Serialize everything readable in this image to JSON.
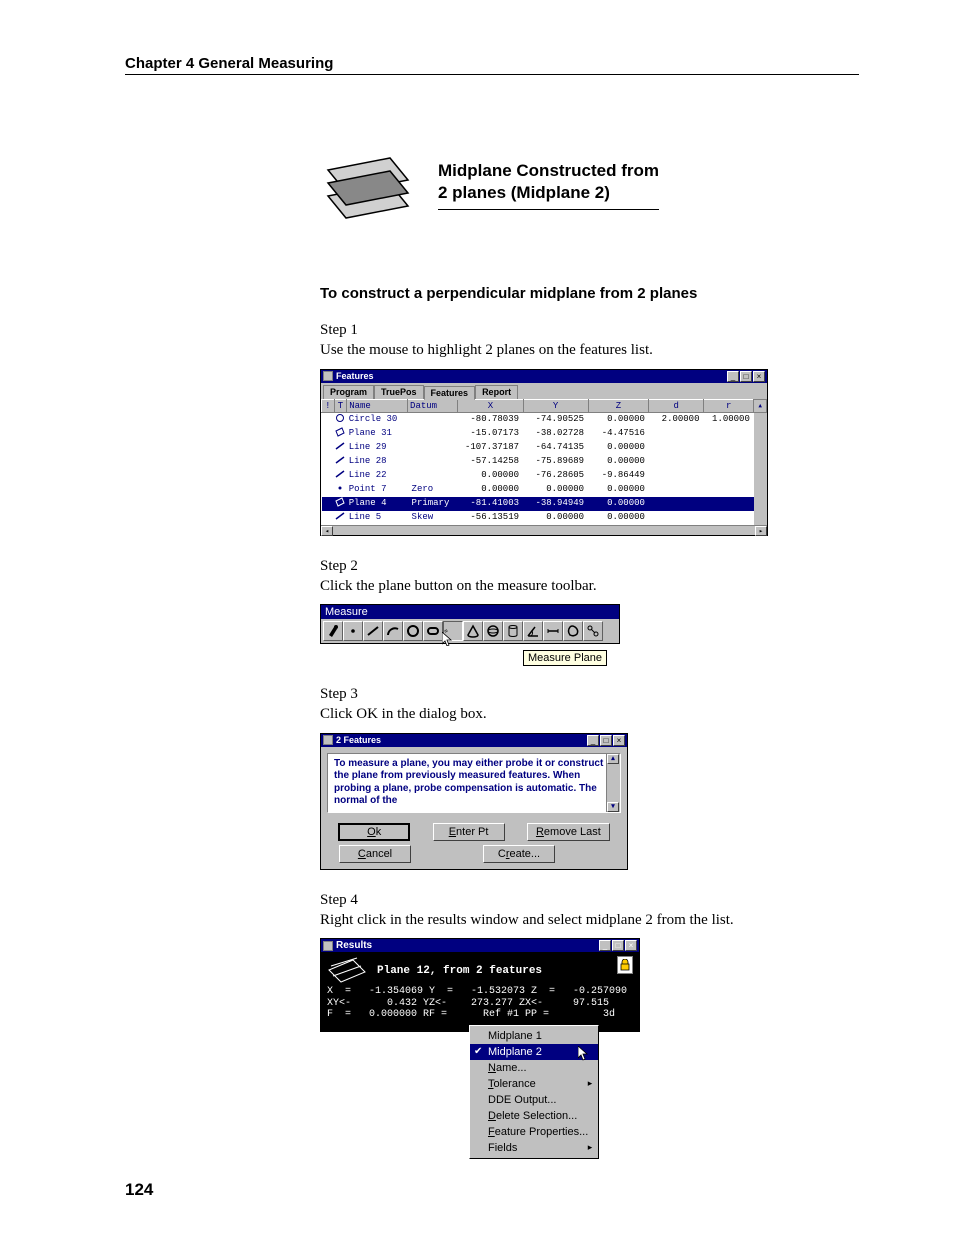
{
  "chapter_header": "Chapter 4    General Measuring",
  "page_number": "124",
  "title": {
    "line1": "Midplane Constructed from",
    "line2": "2 planes (Midplane 2)"
  },
  "section_heading": "To construct a perpendicular midplane from 2 planes",
  "steps": {
    "s1_label": "Step 1",
    "s1_text": "Use the mouse to highlight 2 planes on the features list.",
    "s2_label": "Step 2",
    "s2_text": "Click the plane button on the measure toolbar.",
    "s3_label": "Step 3",
    "s3_text": "Click OK in the dialog box.",
    "s4_label": "Step 4",
    "s4_text": "Right click in the results window and select midplane 2 from the list."
  },
  "features_window": {
    "title": "Features",
    "tabs": [
      "Program",
      "TruePos",
      "Features",
      "Report"
    ],
    "columns": [
      "!",
      "T",
      "Name",
      "Datum",
      "X",
      "Y",
      "Z",
      "d",
      "r"
    ],
    "rows": [
      {
        "icon": "circle",
        "name": "Circle 30",
        "datum": "",
        "x": "-80.78039",
        "y": "-74.90525",
        "z": "0.00000",
        "d": "2.00000",
        "r": "1.00000",
        "sel": false
      },
      {
        "icon": "plane",
        "name": "Plane 31",
        "datum": "",
        "x": "-15.07173",
        "y": "-38.02728",
        "z": "-4.47516",
        "d": "",
        "r": "",
        "sel": false
      },
      {
        "icon": "line",
        "name": "Line 29",
        "datum": "",
        "x": "-107.37187",
        "y": "-64.74135",
        "z": "0.00000",
        "d": "",
        "r": "",
        "sel": false
      },
      {
        "icon": "line",
        "name": "Line 28",
        "datum": "",
        "x": "-57.14258",
        "y": "-75.89689",
        "z": "0.00000",
        "d": "",
        "r": "",
        "sel": false
      },
      {
        "icon": "line",
        "name": "Line 22",
        "datum": "",
        "x": "0.00000",
        "y": "-76.28605",
        "z": "-9.86449",
        "d": "",
        "r": "",
        "sel": false
      },
      {
        "icon": "point",
        "name": "Point 7",
        "datum": "Zero",
        "x": "0.00000",
        "y": "0.00000",
        "z": "0.00000",
        "d": "",
        "r": "",
        "sel": false
      },
      {
        "icon": "plane",
        "name": "Plane 4",
        "datum": "Primary",
        "x": "-81.41003",
        "y": "-38.94949",
        "z": "0.00000",
        "d": "",
        "r": "",
        "sel": true
      },
      {
        "icon": "line",
        "name": "Line 5",
        "datum": "Skew",
        "x": "-56.13519",
        "y": "0.00000",
        "z": "0.00000",
        "d": "",
        "r": "",
        "sel": false
      }
    ]
  },
  "measure_toolbar": {
    "title": "Measure",
    "tooltip": "Measure Plane",
    "buttons": [
      "probe",
      "point",
      "line",
      "arc",
      "circle",
      "slot",
      "plane",
      "cone",
      "sphere",
      "cylinder",
      "angle",
      "distance",
      "blob",
      "relation"
    ]
  },
  "dialog": {
    "title": "2 Features",
    "body": "To measure a plane, you may either probe it or construct the plane from previously measured features.  When probing a plane, probe compensation is automatic.  The normal of the",
    "buttons": {
      "ok": "Ok",
      "enter_pt": "Enter Pt",
      "remove_last": "Remove Last",
      "cancel": "Cancel",
      "create": "Create..."
    }
  },
  "results": {
    "title": "Results",
    "header": "Plane 12, from 2 features",
    "lines": [
      "X  =   -1.354069 Y  =   -1.532073 Z  =   -0.257090",
      "XY<-      0.432 YZ<-    273.277 ZX<-     97.515",
      "F  =   0.000000 RF =      Ref #1 PP =         3d"
    ],
    "context_menu": [
      {
        "label": "Midplane 1",
        "sel": false,
        "check": false,
        "arrow": false,
        "u": ""
      },
      {
        "label": "Midplane 2",
        "sel": true,
        "check": true,
        "arrow": false,
        "u": ""
      },
      {
        "label": "Name...",
        "sel": false,
        "check": false,
        "arrow": false,
        "u": "N"
      },
      {
        "label": "Tolerance",
        "sel": false,
        "check": false,
        "arrow": true,
        "u": "T"
      },
      {
        "label": "DDE Output...",
        "sel": false,
        "check": false,
        "arrow": false,
        "u": ""
      },
      {
        "label": "Delete Selection...",
        "sel": false,
        "check": false,
        "arrow": false,
        "u": "D"
      },
      {
        "label": "Feature Properties...",
        "sel": false,
        "check": false,
        "arrow": false,
        "u": "F"
      },
      {
        "label": "Fields",
        "sel": false,
        "check": false,
        "arrow": true,
        "u": ""
      }
    ]
  },
  "colors": {
    "page_bg": "#ffffff",
    "titlebar": "#000080",
    "win_gray": "#c0c0c0",
    "text_black": "#000000",
    "tooltip_bg": "#ffffe1",
    "results_bg": "#000000",
    "results_fg": "#ffffff"
  }
}
